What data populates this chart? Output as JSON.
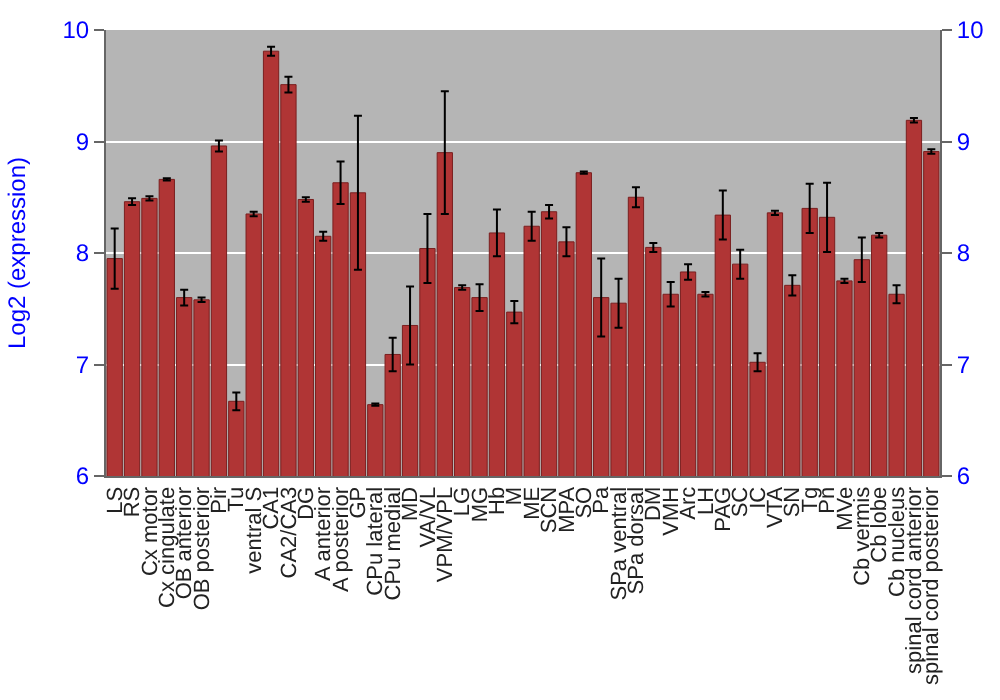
{
  "chart_data": {
    "type": "bar",
    "ylabel": "Log2 (expression)",
    "categories": [
      "LS",
      "RS",
      "Cx motor",
      "Cx cingulate",
      "OB anterior",
      "OB posterior",
      "Pir",
      "Tu",
      "ventral S",
      "CA1",
      "CA2/CA3",
      "DG",
      "A anterior",
      "A posterior",
      "GP",
      "CPu lateral",
      "CPu medial",
      "MD",
      "VA/VL",
      "VPM/VPL",
      "LG",
      "MG",
      "Hb",
      "M",
      "ME",
      "SCN",
      "MPA",
      "SO",
      "Pa",
      "SPa ventral",
      "SPa dorsal",
      "DM",
      "VMH",
      "Arc",
      "LH",
      "PAG",
      "SC",
      "IC",
      "VTA",
      "SN",
      "Tg",
      "Pn",
      "MVe",
      "Cb vermis",
      "Cb lobe",
      "Cb nucleus",
      "spinal cord anterior",
      "spinal cord posterior"
    ],
    "values": [
      7.95,
      8.46,
      8.49,
      8.66,
      7.6,
      7.58,
      8.96,
      6.67,
      8.35,
      9.81,
      9.51,
      8.48,
      8.15,
      8.63,
      8.54,
      6.64,
      7.09,
      7.35,
      8.04,
      8.9,
      7.69,
      7.6,
      8.18,
      7.47,
      8.24,
      8.37,
      8.1,
      8.72,
      7.6,
      7.55,
      8.5,
      8.05,
      7.63,
      7.83,
      7.63,
      8.34,
      7.9,
      7.02,
      8.36,
      7.71,
      8.4,
      8.32,
      7.75,
      7.94,
      8.16,
      7.63,
      9.19,
      8.91
    ],
    "errors": [
      0.27,
      0.03,
      0.02,
      0.01,
      0.07,
      0.02,
      0.05,
      0.08,
      0.02,
      0.04,
      0.07,
      0.02,
      0.04,
      0.19,
      0.69,
      0.01,
      0.15,
      0.35,
      0.31,
      0.55,
      0.02,
      0.12,
      0.21,
      0.1,
      0.13,
      0.06,
      0.13,
      0.01,
      0.35,
      0.22,
      0.09,
      0.04,
      0.11,
      0.07,
      0.02,
      0.22,
      0.13,
      0.08,
      0.02,
      0.09,
      0.22,
      0.31,
      0.02,
      0.2,
      0.02,
      0.08,
      0.02,
      0.02
    ],
    "color": "#b03535",
    "ylim": [
      6,
      10
    ],
    "yticks": [
      6,
      7,
      8,
      9,
      10
    ],
    "y2lim": [
      6,
      10
    ],
    "y2ticks": [
      6,
      7,
      8,
      9,
      10
    ],
    "grid": "y"
  }
}
